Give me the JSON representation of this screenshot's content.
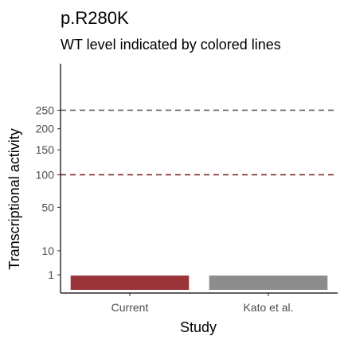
{
  "chart_data": {
    "type": "bar",
    "title": "p.R280K",
    "subtitle": "WT level indicated by colored lines",
    "xlabel": "Study",
    "ylabel": "Transcriptional activity",
    "categories": [
      "Current",
      "Kato et al."
    ],
    "values": [
      0.3,
      0.3
    ],
    "bar_colors": [
      "#9a3438",
      "#8c8c8c"
    ],
    "y_scale": "sqrt",
    "ylim": [
      0,
      400
    ],
    "y_ticks": [
      1,
      10,
      50,
      100,
      150,
      200,
      250
    ],
    "y_tick_labels": [
      "1",
      "10",
      "50",
      "100",
      "150",
      "200",
      "250"
    ],
    "reference_lines": [
      {
        "value": 250,
        "color": "#666666",
        "style": "dashed"
      },
      {
        "value": 100,
        "color": "#7a1f24",
        "style": "dashed"
      }
    ],
    "grid": false
  }
}
